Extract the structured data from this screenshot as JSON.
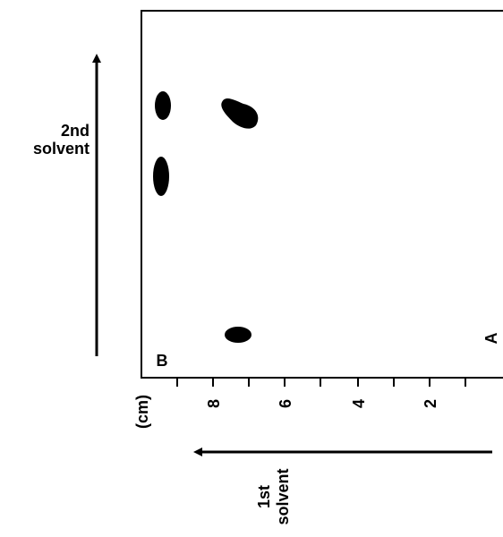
{
  "second_solvent": [
    "2nd",
    "solvent"
  ],
  "first_solvent": [
    "1st",
    "solvent"
  ],
  "axis": {
    "unit": "(cm)",
    "ticks": [
      "8",
      "6",
      "4",
      "2"
    ]
  },
  "corners": {
    "left": "B",
    "right": "A"
  }
}
